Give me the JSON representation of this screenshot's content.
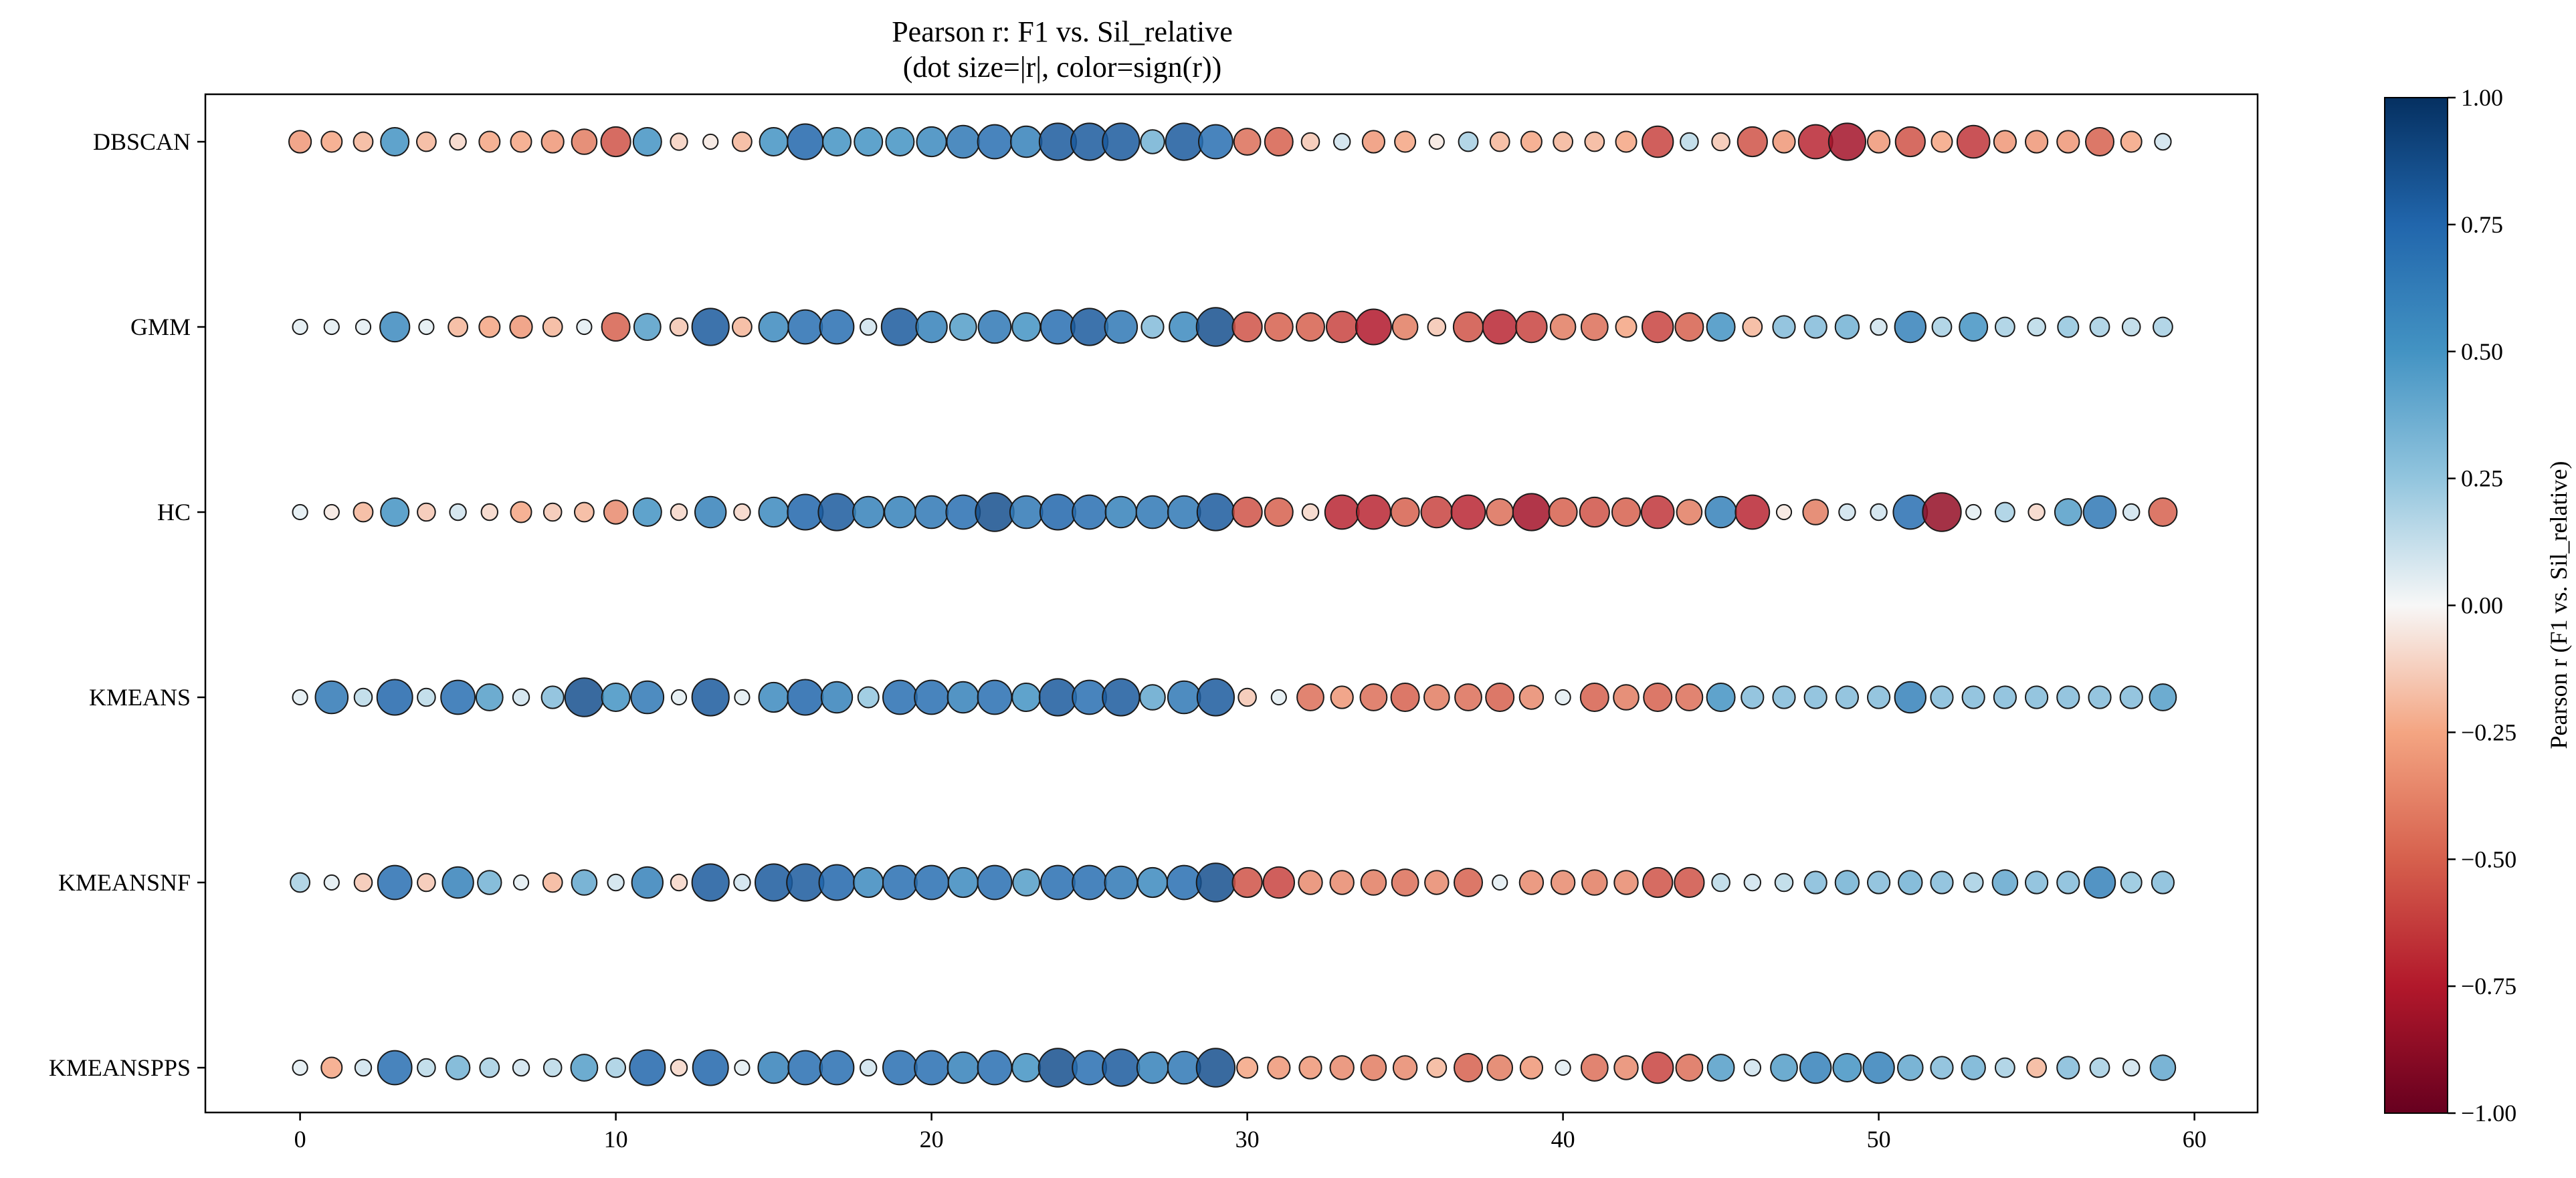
{
  "chart_data": {
    "type": "scatter",
    "title": "Pearson r: F1 vs. Sil_relative",
    "subtitle": "(dot size=|r|, color=sign(r))",
    "xlabel": "",
    "ylabel": "",
    "xlim": [
      -3,
      62
    ],
    "x": [
      0,
      1,
      2,
      3,
      4,
      5,
      6,
      7,
      8,
      9,
      10,
      11,
      12,
      13,
      14,
      15,
      16,
      17,
      18,
      19,
      20,
      21,
      22,
      23,
      24,
      25,
      26,
      27,
      28,
      29,
      30,
      31,
      32,
      33,
      34,
      35,
      36,
      37,
      38,
      39,
      40,
      41,
      42,
      43,
      44,
      45,
      46,
      47,
      48,
      49,
      50,
      51,
      52,
      53,
      54,
      55,
      56,
      57,
      58,
      59
    ],
    "x_ticks": [
      0,
      10,
      20,
      30,
      40,
      50,
      60
    ],
    "categories": [
      "DBSCAN",
      "GMM",
      "HC",
      "KMEANS",
      "KMEANSNF",
      "KMEANSPPS"
    ],
    "series": [
      {
        "name": "DBSCAN",
        "values": [
          -0.3,
          -0.25,
          -0.2,
          0.5,
          -0.2,
          -0.1,
          -0.25,
          -0.25,
          -0.3,
          -0.4,
          -0.55,
          0.5,
          -0.12,
          -0.05,
          -0.2,
          0.5,
          0.75,
          0.5,
          0.5,
          0.5,
          0.55,
          0.65,
          0.7,
          0.6,
          0.8,
          0.8,
          0.8,
          0.35,
          0.8,
          0.7,
          -0.45,
          -0.5,
          -0.15,
          0.1,
          -0.3,
          -0.25,
          -0.05,
          0.2,
          -0.2,
          -0.25,
          -0.2,
          -0.2,
          -0.25,
          -0.6,
          0.15,
          -0.15,
          -0.55,
          -0.3,
          -0.7,
          -0.8,
          -0.3,
          -0.55,
          -0.25,
          -0.65,
          -0.3,
          -0.3,
          -0.3,
          -0.5,
          -0.25,
          0.1
        ]
      },
      {
        "name": "GMM",
        "values": [
          0.05,
          0.05,
          0.05,
          0.55,
          0.05,
          -0.2,
          -0.25,
          -0.3,
          -0.2,
          0.05,
          -0.5,
          0.45,
          -0.15,
          0.8,
          -0.2,
          0.55,
          0.7,
          0.7,
          0.1,
          0.8,
          0.6,
          0.45,
          0.65,
          0.5,
          0.7,
          0.8,
          0.65,
          0.3,
          0.55,
          0.85,
          -0.55,
          -0.5,
          -0.5,
          -0.6,
          -0.75,
          -0.4,
          -0.15,
          -0.55,
          -0.7,
          -0.6,
          -0.4,
          -0.45,
          -0.25,
          -0.6,
          -0.5,
          0.5,
          -0.2,
          0.3,
          0.3,
          0.35,
          0.1,
          0.6,
          0.2,
          0.5,
          0.2,
          0.15,
          0.25,
          0.2,
          0.15,
          0.2
        ]
      },
      {
        "name": "HC",
        "values": [
          0.05,
          -0.05,
          -0.2,
          0.5,
          -0.15,
          0.1,
          -0.1,
          -0.25,
          -0.15,
          -0.2,
          -0.35,
          0.5,
          -0.1,
          0.6,
          -0.1,
          0.55,
          0.75,
          0.8,
          0.6,
          0.6,
          0.65,
          0.7,
          0.85,
          0.65,
          0.75,
          0.7,
          0.6,
          0.65,
          0.65,
          0.8,
          -0.55,
          -0.5,
          -0.1,
          -0.7,
          -0.7,
          -0.5,
          -0.6,
          -0.7,
          -0.45,
          -0.8,
          -0.5,
          -0.55,
          -0.5,
          -0.65,
          -0.4,
          0.6,
          -0.7,
          -0.05,
          -0.4,
          0.1,
          0.1,
          0.7,
          -0.85,
          0.05,
          0.2,
          -0.1,
          0.45,
          0.65,
          0.1,
          -0.5
        ]
      },
      {
        "name": "KMEANS",
        "values": [
          0.05,
          0.65,
          0.15,
          0.75,
          0.15,
          0.7,
          0.45,
          0.1,
          0.3,
          0.85,
          0.5,
          0.65,
          0.05,
          0.8,
          0.05,
          0.55,
          0.75,
          0.6,
          0.25,
          0.7,
          0.7,
          0.6,
          0.7,
          0.5,
          0.8,
          0.7,
          0.8,
          0.4,
          0.65,
          0.8,
          -0.15,
          0.05,
          -0.45,
          -0.3,
          -0.45,
          -0.5,
          -0.4,
          -0.45,
          -0.5,
          -0.35,
          0.05,
          -0.5,
          -0.4,
          -0.5,
          -0.45,
          0.5,
          0.3,
          0.3,
          0.3,
          0.3,
          0.3,
          0.6,
          0.3,
          0.3,
          0.3,
          0.3,
          0.3,
          0.3,
          0.3,
          0.45
        ]
      },
      {
        "name": "KMEANSNF",
        "values": [
          0.2,
          0.05,
          -0.15,
          0.7,
          -0.15,
          0.6,
          0.35,
          0.05,
          -0.2,
          0.4,
          0.1,
          0.6,
          -0.1,
          0.8,
          0.1,
          0.8,
          0.8,
          0.75,
          0.55,
          0.7,
          0.7,
          0.55,
          0.7,
          0.45,
          0.7,
          0.7,
          0.65,
          0.55,
          0.7,
          0.85,
          -0.55,
          -0.6,
          -0.35,
          -0.35,
          -0.4,
          -0.45,
          -0.35,
          -0.5,
          0.05,
          -0.35,
          -0.35,
          -0.4,
          -0.35,
          -0.55,
          -0.55,
          0.15,
          0.1,
          0.15,
          0.3,
          0.35,
          0.3,
          0.35,
          0.3,
          0.2,
          0.4,
          0.3,
          0.3,
          0.6,
          0.25,
          0.3
        ]
      },
      {
        "name": "KMEANSPPS",
        "values": [
          0.05,
          -0.25,
          0.1,
          0.7,
          0.15,
          0.35,
          0.2,
          0.1,
          0.15,
          0.45,
          0.2,
          0.75,
          -0.1,
          0.75,
          0.05,
          0.6,
          0.7,
          0.7,
          0.1,
          0.7,
          0.7,
          0.6,
          0.7,
          0.5,
          0.85,
          0.7,
          0.8,
          0.6,
          0.65,
          0.85,
          -0.25,
          -0.3,
          -0.3,
          -0.35,
          -0.4,
          -0.35,
          -0.2,
          -0.5,
          -0.4,
          -0.3,
          0.05,
          -0.45,
          -0.35,
          -0.6,
          -0.45,
          0.45,
          0.1,
          0.45,
          0.6,
          0.5,
          0.6,
          0.4,
          0.3,
          0.35,
          0.2,
          -0.2,
          0.3,
          0.2,
          0.1,
          0.4
        ]
      }
    ],
    "colorbar": {
      "label": "Pearson r (F1 vs. Sil_relative)",
      "range": [
        -1,
        1
      ],
      "ticks": [
        "1.00",
        "0.75",
        "0.50",
        "0.25",
        "0.00",
        "−0.25",
        "−0.50",
        "−0.75",
        "−1.00"
      ],
      "colormap": "RdBu"
    },
    "grid": false
  }
}
